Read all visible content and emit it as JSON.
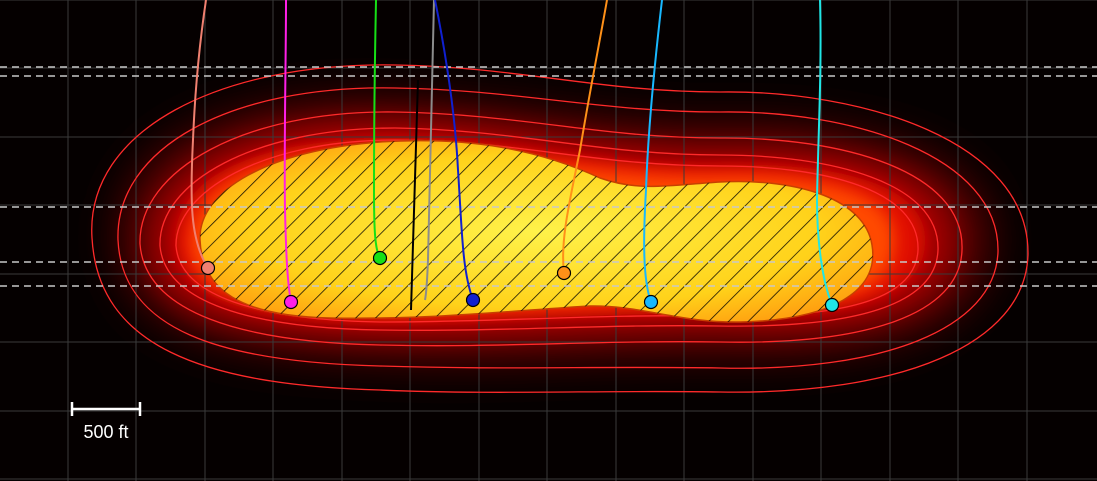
{
  "scale_bar": {
    "label": "500 ft"
  },
  "colors": {
    "background": "#050000",
    "grid": "#3a3a3a",
    "dashed_lines": "#c8c8c8",
    "contour": "#ff2a2a",
    "hatch": "#000000",
    "core_fill": "#ffe21a"
  },
  "wells": [
    {
      "id": "well-salmon",
      "color": "#f08070",
      "marker": true
    },
    {
      "id": "well-magenta",
      "color": "#ff1fe6",
      "marker": true
    },
    {
      "id": "well-green",
      "color": "#16e016",
      "marker": true
    },
    {
      "id": "well-black",
      "color": "#000000",
      "marker": false
    },
    {
      "id": "well-gray",
      "color": "#8c8c8c",
      "marker": false
    },
    {
      "id": "well-blue",
      "color": "#1020d0",
      "marker": true
    },
    {
      "id": "well-orange",
      "color": "#ff9018",
      "marker": true
    },
    {
      "id": "well-skyblue",
      "color": "#18b8ff",
      "marker": true
    },
    {
      "id": "well-cyan",
      "color": "#20e6e6",
      "marker": true
    }
  ]
}
